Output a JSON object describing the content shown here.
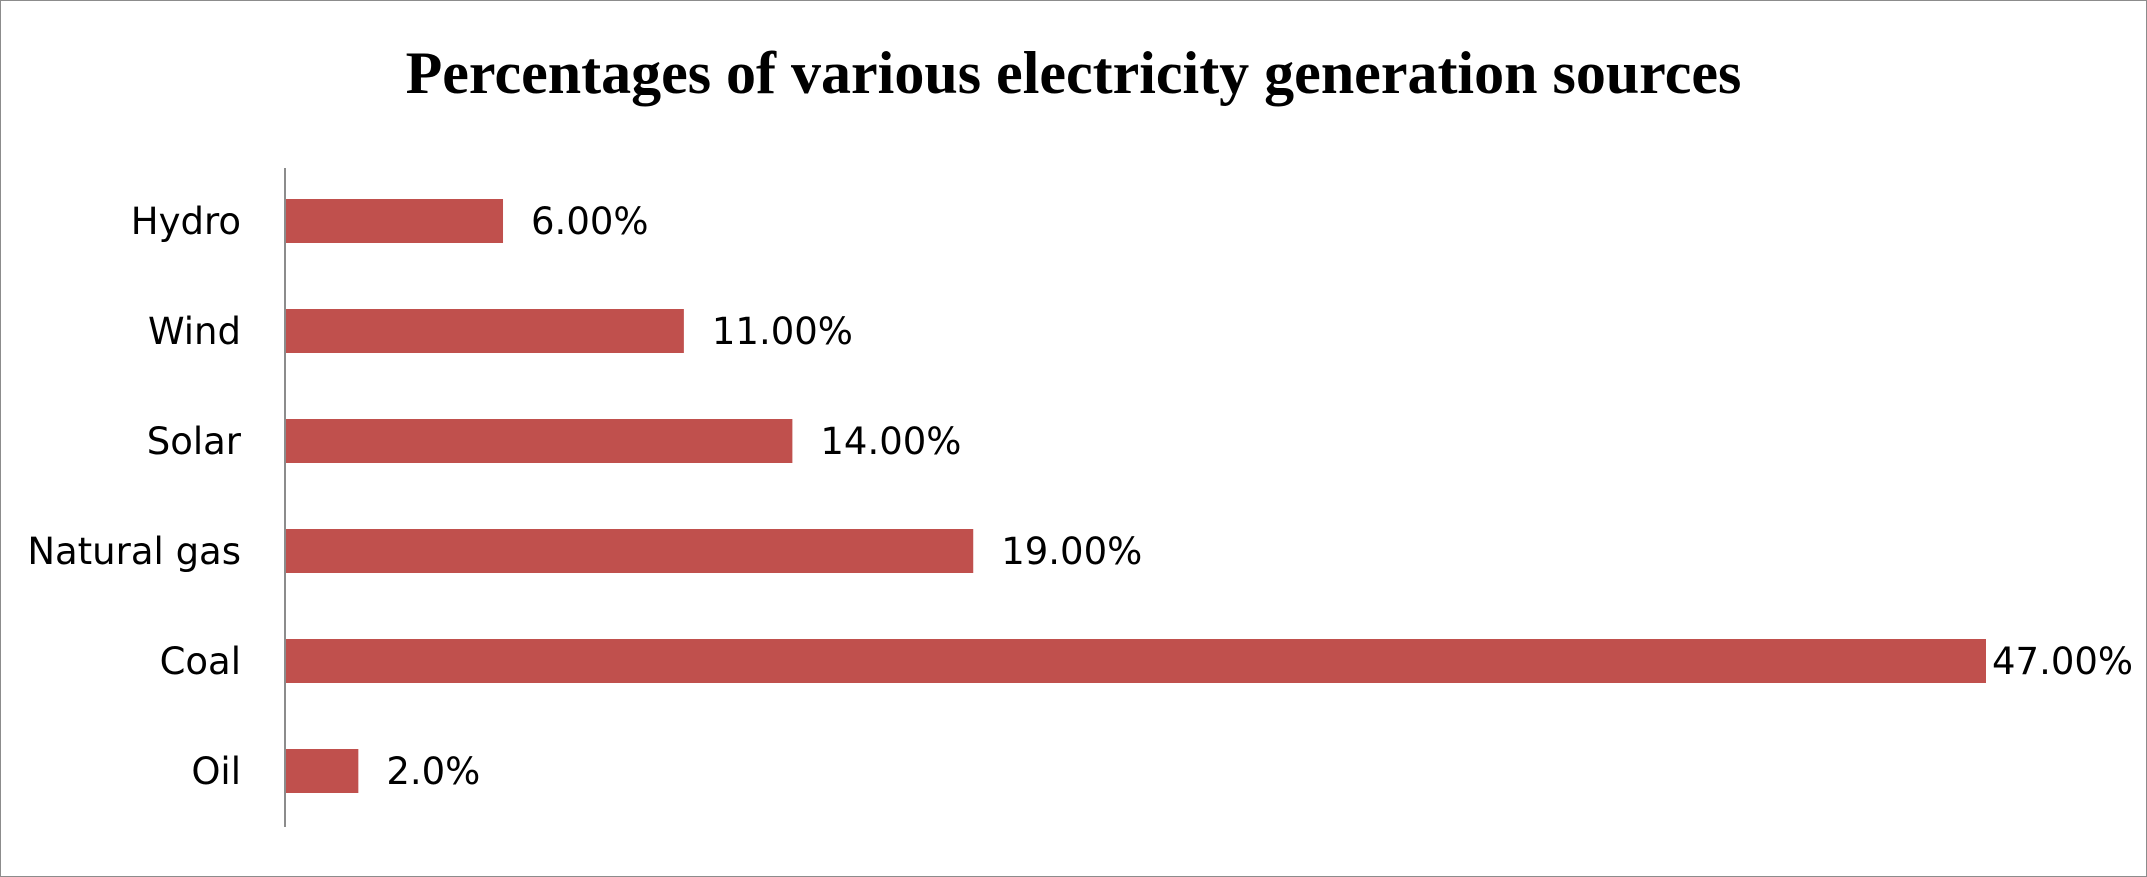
{
  "chart_data": {
    "type": "bar",
    "orientation": "horizontal",
    "title": "Percentages of various electricity generation sources",
    "xlabel": "",
    "ylabel": "",
    "categories": [
      "Hydro",
      "Wind",
      "Solar",
      "Natural gas",
      "Coal",
      "Oil"
    ],
    "values": [
      6,
      11,
      14,
      19,
      47,
      2
    ],
    "value_labels": [
      "6.00%",
      "11.00%",
      "14.00%",
      "19.00%",
      "47.00%",
      "2.0%"
    ],
    "xlim": [
      0,
      47
    ],
    "grid": false,
    "legend": "none",
    "bar_color": "#c0504d"
  }
}
